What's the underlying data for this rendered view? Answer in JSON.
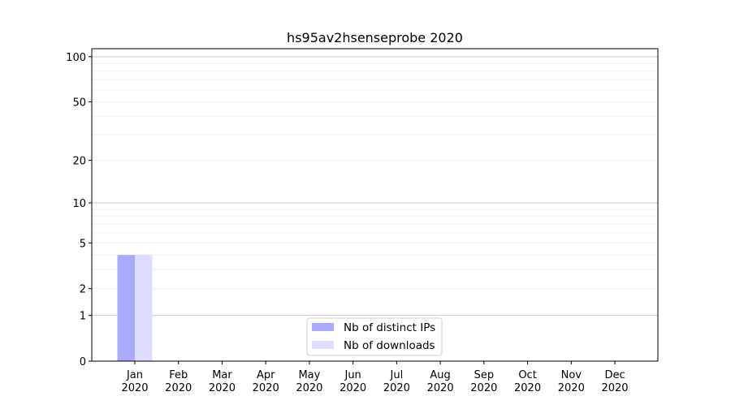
{
  "chart_data": {
    "type": "bar",
    "title": "hs95av2hsenseprobe 2020",
    "xlabel": "",
    "ylabel": "",
    "y_scale": "log(1+y)",
    "ylim": [
      0,
      113
    ],
    "yticks": [
      0,
      1,
      2,
      5,
      10,
      20,
      50,
      100
    ],
    "grid": true,
    "legend_position": "bottom-center",
    "categories": [
      {
        "month": "Jan",
        "year": "2020"
      },
      {
        "month": "Feb",
        "year": "2020"
      },
      {
        "month": "Mar",
        "year": "2020"
      },
      {
        "month": "Apr",
        "year": "2020"
      },
      {
        "month": "May",
        "year": "2020"
      },
      {
        "month": "Jun",
        "year": "2020"
      },
      {
        "month": "Jul",
        "year": "2020"
      },
      {
        "month": "Aug",
        "year": "2020"
      },
      {
        "month": "Sep",
        "year": "2020"
      },
      {
        "month": "Oct",
        "year": "2020"
      },
      {
        "month": "Nov",
        "year": "2020"
      },
      {
        "month": "Dec",
        "year": "2020"
      }
    ],
    "series": [
      {
        "name": "Nb of distinct IPs",
        "color": "#aaaaff",
        "values": [
          4,
          0,
          0,
          0,
          0,
          0,
          0,
          0,
          0,
          0,
          0,
          0
        ]
      },
      {
        "name": "Nb of downloads",
        "color": "#ddddff",
        "values": [
          4,
          0,
          0,
          0,
          0,
          0,
          0,
          0,
          0,
          0,
          0,
          0
        ]
      }
    ]
  }
}
